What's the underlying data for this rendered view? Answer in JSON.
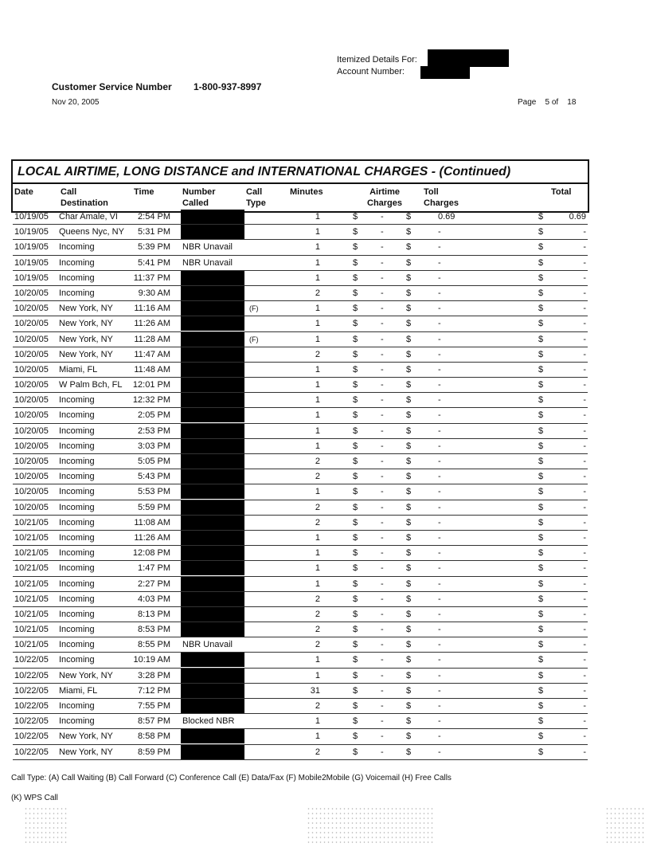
{
  "header": {
    "itemized_label": "Itemized Details For:",
    "account_label": "Account Number:",
    "customer_service_label": "Customer Service Number",
    "customer_service_number": "1-800-937-8997",
    "date": "Nov 20, 2005",
    "page_label": "Page",
    "page_current": "5",
    "page_of": "of",
    "page_total": "18"
  },
  "table": {
    "title": "LOCAL AIRTIME, LONG DISTANCE and INTERNATIONAL CHARGES  - (Continued)",
    "columns": {
      "date": "Date",
      "dest1": "Call",
      "dest2": "Destination",
      "time": "Time",
      "num1": "Number",
      "num2": "Called",
      "type1": "Call",
      "type2": "Type",
      "minutes": "Minutes",
      "air1": "Airtime",
      "air2": "Charges",
      "toll1": "Toll",
      "toll2": "Charges",
      "total": "Total"
    },
    "currency": "$",
    "rows": [
      {
        "date": "10/19/05",
        "dest": "Char Amale, VI",
        "time": "2:54 PM",
        "number": "",
        "redacted": true,
        "type": "",
        "minutes": "1",
        "airtime": "-",
        "toll": "0.69",
        "total": "0.69"
      },
      {
        "date": "10/19/05",
        "dest": "Queens Nyc, NY",
        "time": "5:31 PM",
        "number": "",
        "redacted": true,
        "type": "",
        "minutes": "1",
        "airtime": "-",
        "toll": "-",
        "total": "-"
      },
      {
        "date": "10/19/05",
        "dest": "Incoming",
        "time": "5:39 PM",
        "number": "NBR Unavail",
        "redacted": false,
        "type": "",
        "minutes": "1",
        "airtime": "-",
        "toll": "-",
        "total": "-"
      },
      {
        "date": "10/19/05",
        "dest": "Incoming",
        "time": "5:41 PM",
        "number": "NBR Unavail",
        "redacted": false,
        "type": "",
        "minutes": "1",
        "airtime": "-",
        "toll": "-",
        "total": "-"
      },
      {
        "date": "10/19/05",
        "dest": "Incoming",
        "time": "11:37 PM",
        "number": "",
        "redacted": true,
        "type": "",
        "minutes": "1",
        "airtime": "-",
        "toll": "-",
        "total": "-"
      },
      {
        "date": "10/20/05",
        "dest": "Incoming",
        "time": "9:30 AM",
        "number": "",
        "redacted": true,
        "type": "",
        "minutes": "2",
        "airtime": "-",
        "toll": "-",
        "total": "-"
      },
      {
        "date": "10/20/05",
        "dest": "New York, NY",
        "time": "11:16 AM",
        "number": "",
        "redacted": true,
        "type": "(F)",
        "minutes": "1",
        "airtime": "-",
        "toll": "-",
        "total": "-"
      },
      {
        "date": "10/20/05",
        "dest": "New York, NY",
        "time": "11:26 AM",
        "number": "",
        "redacted": true,
        "type": "",
        "minutes": "1",
        "airtime": "-",
        "toll": "-",
        "total": "-"
      },
      {
        "date": "10/20/05",
        "dest": "New York, NY",
        "time": "11:28 AM",
        "number": "",
        "redacted": true,
        "type": "(F)",
        "minutes": "1",
        "airtime": "-",
        "toll": "-",
        "total": "-"
      },
      {
        "date": "10/20/05",
        "dest": "New York, NY",
        "time": "11:47 AM",
        "number": "",
        "redacted": true,
        "type": "",
        "minutes": "2",
        "airtime": "-",
        "toll": "-",
        "total": "-"
      },
      {
        "date": "10/20/05",
        "dest": "Miami, FL",
        "time": "11:48 AM",
        "number": "",
        "redacted": true,
        "type": "",
        "minutes": "1",
        "airtime": "-",
        "toll": "-",
        "total": "-"
      },
      {
        "date": "10/20/05",
        "dest": "W Palm Bch, FL",
        "time": "12:01 PM",
        "number": "",
        "redacted": true,
        "type": "",
        "minutes": "1",
        "airtime": "-",
        "toll": "-",
        "total": "-"
      },
      {
        "date": "10/20/05",
        "dest": "Incoming",
        "time": "12:32 PM",
        "number": "",
        "redacted": true,
        "type": "",
        "minutes": "1",
        "airtime": "-",
        "toll": "-",
        "total": "-"
      },
      {
        "date": "10/20/05",
        "dest": "Incoming",
        "time": "2:05 PM",
        "number": "",
        "redacted": true,
        "type": "",
        "minutes": "1",
        "airtime": "-",
        "toll": "-",
        "total": "-"
      },
      {
        "date": "10/20/05",
        "dest": "Incoming",
        "time": "2:53 PM",
        "number": "",
        "redacted": true,
        "type": "",
        "minutes": "1",
        "airtime": "-",
        "toll": "-",
        "total": "-"
      },
      {
        "date": "10/20/05",
        "dest": "Incoming",
        "time": "3:03 PM",
        "number": "",
        "redacted": true,
        "type": "",
        "minutes": "1",
        "airtime": "-",
        "toll": "-",
        "total": "-"
      },
      {
        "date": "10/20/05",
        "dest": "Incoming",
        "time": "5:05 PM",
        "number": "",
        "redacted": true,
        "type": "",
        "minutes": "2",
        "airtime": "-",
        "toll": "-",
        "total": "-"
      },
      {
        "date": "10/20/05",
        "dest": "Incoming",
        "time": "5:43 PM",
        "number": "",
        "redacted": true,
        "type": "",
        "minutes": "2",
        "airtime": "-",
        "toll": "-",
        "total": "-"
      },
      {
        "date": "10/20/05",
        "dest": "Incoming",
        "time": "5:53 PM",
        "number": "",
        "redacted": true,
        "type": "",
        "minutes": "1",
        "airtime": "-",
        "toll": "-",
        "total": "-"
      },
      {
        "date": "10/20/05",
        "dest": "Incoming",
        "time": "5:59 PM",
        "number": "",
        "redacted": true,
        "type": "",
        "minutes": "2",
        "airtime": "-",
        "toll": "-",
        "total": "-"
      },
      {
        "date": "10/21/05",
        "dest": "Incoming",
        "time": "11:08 AM",
        "number": "",
        "redacted": true,
        "type": "",
        "minutes": "2",
        "airtime": "-",
        "toll": "-",
        "total": "-"
      },
      {
        "date": "10/21/05",
        "dest": "Incoming",
        "time": "11:26 AM",
        "number": "",
        "redacted": true,
        "type": "",
        "minutes": "1",
        "airtime": "-",
        "toll": "-",
        "total": "-"
      },
      {
        "date": "10/21/05",
        "dest": "Incoming",
        "time": "12:08 PM",
        "number": "",
        "redacted": true,
        "type": "",
        "minutes": "1",
        "airtime": "-",
        "toll": "-",
        "total": "-"
      },
      {
        "date": "10/21/05",
        "dest": "Incoming",
        "time": "1:47 PM",
        "number": "",
        "redacted": true,
        "type": "",
        "minutes": "1",
        "airtime": "-",
        "toll": "-",
        "total": "-"
      },
      {
        "date": "10/21/05",
        "dest": "Incoming",
        "time": "2:27 PM",
        "number": "",
        "redacted": true,
        "type": "",
        "minutes": "1",
        "airtime": "-",
        "toll": "-",
        "total": "-"
      },
      {
        "date": "10/21/05",
        "dest": "Incoming",
        "time": "4:03 PM",
        "number": "",
        "redacted": true,
        "type": "",
        "minutes": "2",
        "airtime": "-",
        "toll": "-",
        "total": "-"
      },
      {
        "date": "10/21/05",
        "dest": "Incoming",
        "time": "8:13 PM",
        "number": "",
        "redacted": true,
        "type": "",
        "minutes": "2",
        "airtime": "-",
        "toll": "-",
        "total": "-"
      },
      {
        "date": "10/21/05",
        "dest": "Incoming",
        "time": "8:53 PM",
        "number": "",
        "redacted": true,
        "type": "",
        "minutes": "2",
        "airtime": "-",
        "toll": "-",
        "total": "-"
      },
      {
        "date": "10/21/05",
        "dest": "Incoming",
        "time": "8:55 PM",
        "number": "NBR Unavail",
        "redacted": false,
        "type": "",
        "minutes": "2",
        "airtime": "-",
        "toll": "-",
        "total": "-"
      },
      {
        "date": "10/22/05",
        "dest": "Incoming",
        "time": "10:19 AM",
        "number": "",
        "redacted": true,
        "type": "",
        "minutes": "1",
        "airtime": "-",
        "toll": "-",
        "total": "-"
      },
      {
        "date": "10/22/05",
        "dest": "New York, NY",
        "time": "3:28 PM",
        "number": "",
        "redacted": true,
        "type": "",
        "minutes": "1",
        "airtime": "-",
        "toll": "-",
        "total": "-"
      },
      {
        "date": "10/22/05",
        "dest": "Miami, FL",
        "time": "7:12 PM",
        "number": "",
        "redacted": true,
        "type": "",
        "minutes": "31",
        "airtime": "-",
        "toll": "-",
        "total": "-"
      },
      {
        "date": "10/22/05",
        "dest": "Incoming",
        "time": "7:55 PM",
        "number": "",
        "redacted": true,
        "type": "",
        "minutes": "2",
        "airtime": "-",
        "toll": "-",
        "total": "-"
      },
      {
        "date": "10/22/05",
        "dest": "Incoming",
        "time": "8:57 PM",
        "number": "Blocked NBR",
        "redacted": false,
        "type": "",
        "minutes": "1",
        "airtime": "-",
        "toll": "-",
        "total": "-"
      },
      {
        "date": "10/22/05",
        "dest": "New York, NY",
        "time": "8:58 PM",
        "number": "",
        "redacted": true,
        "type": "",
        "minutes": "1",
        "airtime": "-",
        "toll": "-",
        "total": "-"
      },
      {
        "date": "10/22/05",
        "dest": "New York, NY",
        "time": "8:59 PM",
        "number": "",
        "redacted": true,
        "type": "",
        "minutes": "2",
        "airtime": "-",
        "toll": "-",
        "total": "-"
      }
    ]
  },
  "footer": {
    "call_types": "Call Type: (A) Call Waiting (B) Call Forward (C) Conference Call (E) Data/Fax (F) Mobile2Mobile (G) Voicemail (H) Free Calls",
    "call_types_2": "(K) WPS Call"
  }
}
